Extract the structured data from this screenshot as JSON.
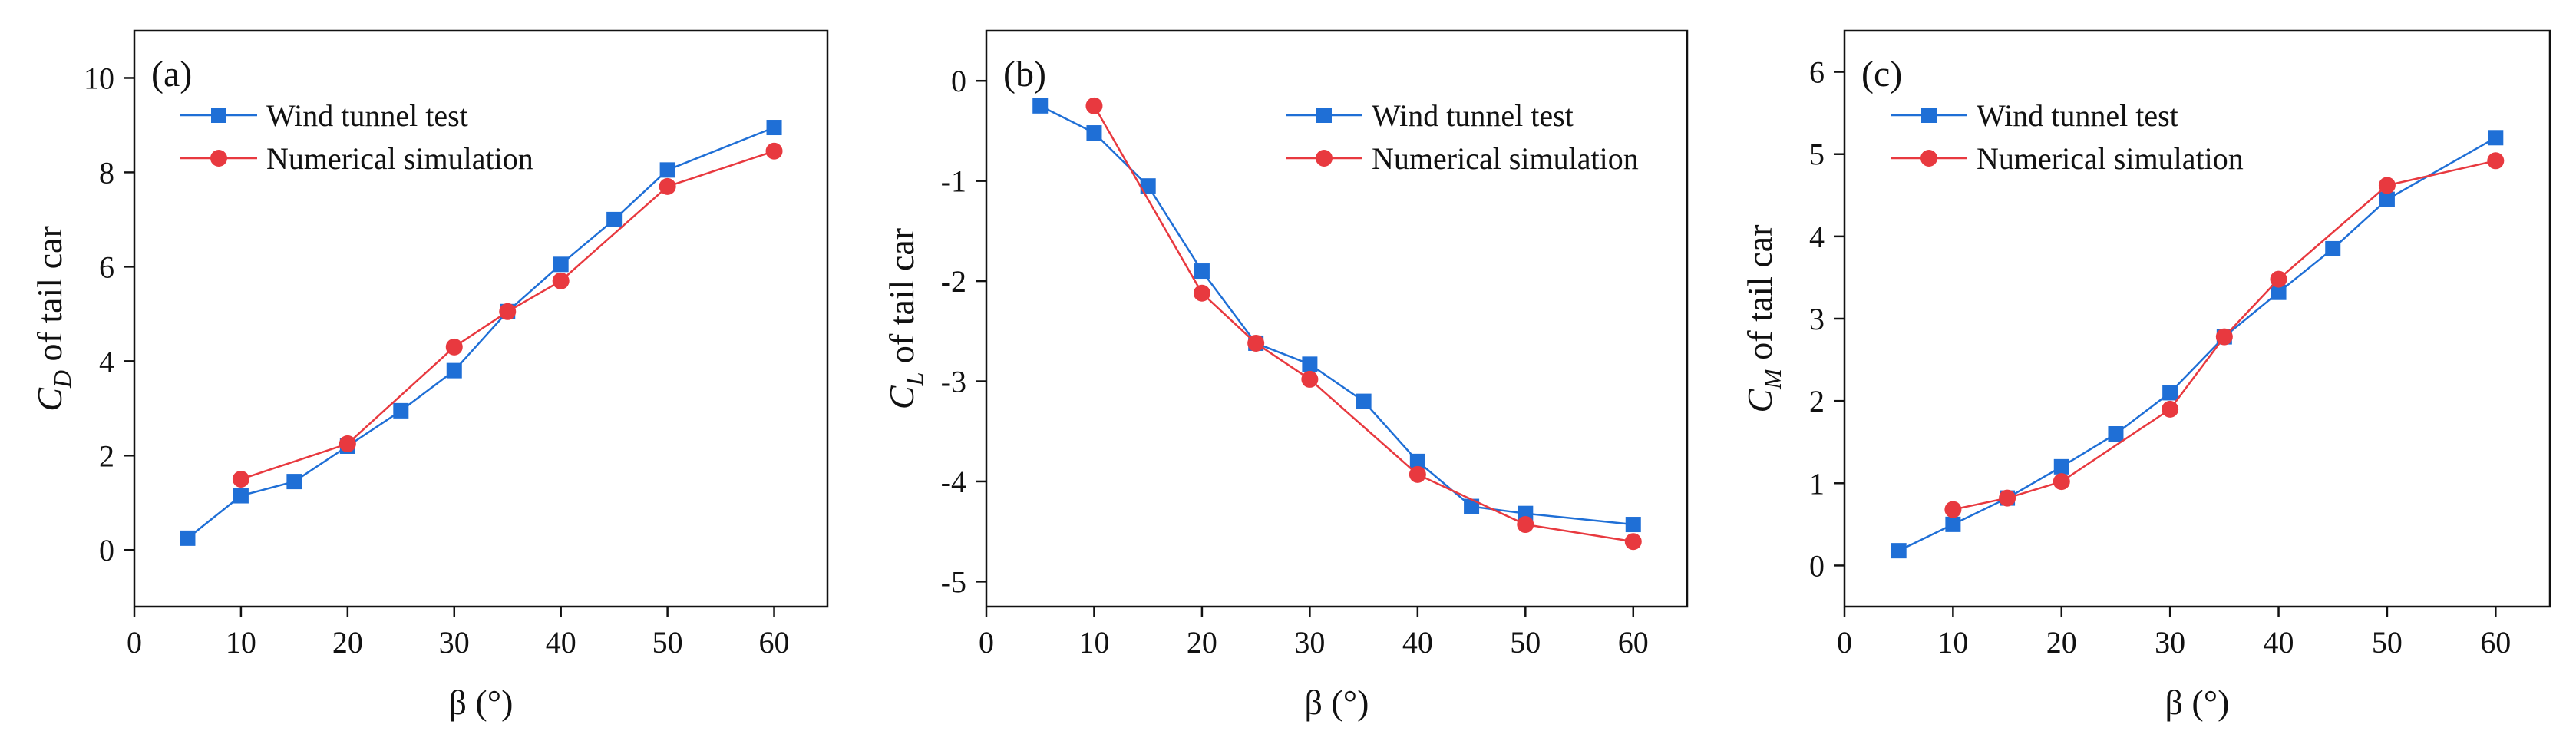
{
  "chart_data": [
    {
      "type": "line",
      "panel_label": "(a)",
      "xlabel": "β (°)",
      "ylabel_main": "C",
      "ylabel_sub": "D",
      "ylabel_rest": " of tail car",
      "xlim": [
        0,
        65
      ],
      "ylim": [
        -1.2,
        11
      ],
      "xticks": [
        0,
        10,
        20,
        30,
        40,
        50,
        60
      ],
      "yticks": [
        0,
        2,
        4,
        6,
        8,
        10
      ],
      "legend_position": "top-left",
      "series": [
        {
          "name": "Wind tunnel test",
          "marker": "square",
          "color": "#1f6fd6",
          "x": [
            5,
            10,
            15,
            20,
            25,
            30,
            35,
            40,
            45,
            50,
            60
          ],
          "y": [
            0.25,
            1.15,
            1.45,
            2.2,
            2.95,
            3.8,
            5.05,
            6.05,
            7.0,
            8.05,
            8.95
          ]
        },
        {
          "name": "Numerical simulation",
          "marker": "circle",
          "color": "#e8393f",
          "x": [
            10,
            20,
            30,
            35,
            40,
            50,
            60
          ],
          "y": [
            1.5,
            2.25,
            4.3,
            5.05,
            5.7,
            7.7,
            8.45
          ]
        }
      ]
    },
    {
      "type": "line",
      "panel_label": "(b)",
      "xlabel": "β (°)",
      "ylabel_main": "C",
      "ylabel_sub": "L",
      "ylabel_rest": " of tail car",
      "xlim": [
        0,
        65
      ],
      "ylim": [
        -5.25,
        0.5
      ],
      "xticks": [
        0,
        10,
        20,
        30,
        40,
        50,
        60
      ],
      "yticks": [
        0,
        -1,
        -2,
        -3,
        -4,
        -5
      ],
      "legend_position": "top-right",
      "series": [
        {
          "name": "Wind tunnel test",
          "marker": "square",
          "color": "#1f6fd6",
          "x": [
            5,
            10,
            15,
            20,
            25,
            30,
            35,
            40,
            45,
            50,
            60
          ],
          "y": [
            -0.25,
            -0.52,
            -1.05,
            -1.9,
            -2.62,
            -2.83,
            -3.2,
            -3.8,
            -4.25,
            -4.32,
            -4.43
          ]
        },
        {
          "name": "Numerical simulation",
          "marker": "circle",
          "color": "#e8393f",
          "x": [
            10,
            20,
            25,
            30,
            40,
            50,
            60
          ],
          "y": [
            -0.25,
            -2.12,
            -2.62,
            -2.98,
            -3.93,
            -4.43,
            -4.6
          ]
        }
      ]
    },
    {
      "type": "line",
      "panel_label": "(c)",
      "xlabel": "β (°)",
      "ylabel_main": "C",
      "ylabel_sub": "M",
      "ylabel_rest": " of tail car",
      "xlim": [
        0,
        65
      ],
      "ylim": [
        -0.5,
        6.5
      ],
      "xticks": [
        0,
        10,
        20,
        30,
        40,
        50,
        60
      ],
      "yticks": [
        0,
        1,
        2,
        3,
        4,
        5,
        6
      ],
      "legend_position": "top-left",
      "series": [
        {
          "name": "Wind tunnel test",
          "marker": "square",
          "color": "#1f6fd6",
          "x": [
            5,
            10,
            15,
            20,
            25,
            30,
            35,
            40,
            45,
            50,
            60
          ],
          "y": [
            0.18,
            0.5,
            0.82,
            1.2,
            1.6,
            2.1,
            2.78,
            3.32,
            3.85,
            4.45,
            5.2
          ]
        },
        {
          "name": "Numerical simulation",
          "marker": "circle",
          "color": "#e8393f",
          "x": [
            10,
            15,
            20,
            30,
            35,
            40,
            50,
            60
          ],
          "y": [
            0.68,
            0.82,
            1.02,
            1.9,
            2.78,
            3.48,
            4.62,
            4.92
          ]
        }
      ]
    }
  ]
}
